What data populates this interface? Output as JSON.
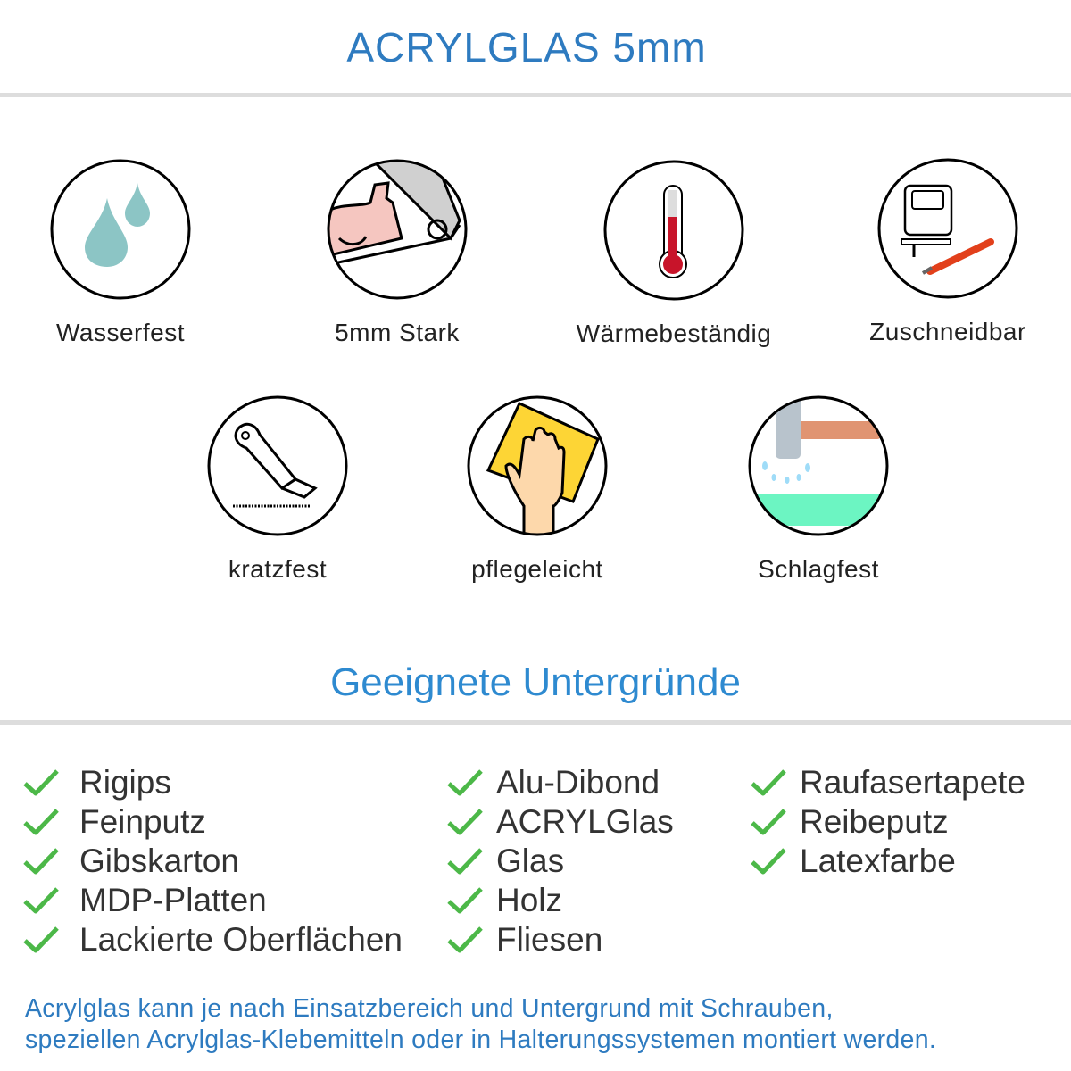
{
  "header": {
    "title": "ACRYLGLAS 5mm"
  },
  "features": [
    {
      "label": "Wasserfest",
      "icon": "water-drops-icon"
    },
    {
      "label": "5mm Stark",
      "icon": "strong-arm-icon"
    },
    {
      "label": "Wärmebeständig",
      "icon": "thermometer-icon"
    },
    {
      "label": "Zuschneidbar",
      "icon": "jigsaw-cutter-icon"
    },
    {
      "label": "kratzfest",
      "icon": "utility-knife-icon"
    },
    {
      "label": "pflegeleicht",
      "icon": "hand-cloth-icon"
    },
    {
      "label": "Schlagfest",
      "icon": "hammer-icon"
    }
  ],
  "surfaces": {
    "title": "Geeignete Untergründe",
    "columns": [
      [
        "Rigips",
        "Feinputz",
        "Gibskarton",
        "MDP-Platten",
        "Lackierte Oberflächen"
      ],
      [
        "Alu-Dibond",
        "ACRYLGlas",
        "Glas",
        "Holz",
        "Fliesen"
      ],
      [
        "Raufasertapete",
        "Reibeputz",
        "Latexfarbe"
      ]
    ],
    "check_color": "#4cb848"
  },
  "footer": {
    "line1": "Acrylglas kann je nach Einsatzbereich und Untergrund mit Schrauben,",
    "line2": "speziellen Acrylglas-Klebemitteln oder in Halterungssystemen montiert werden."
  }
}
